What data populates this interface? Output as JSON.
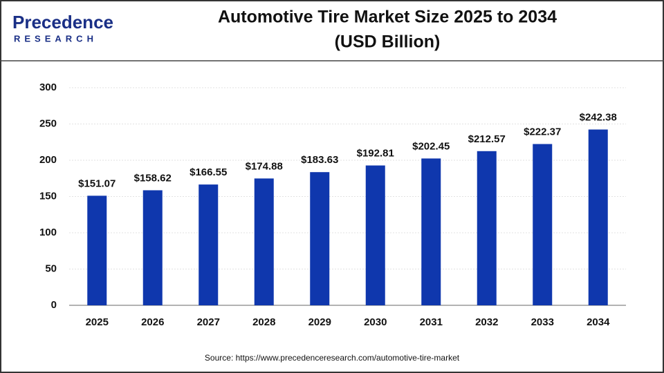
{
  "logo": {
    "name": "Precedence",
    "tagline": "RESEARCH"
  },
  "chart_data": {
    "type": "bar",
    "title": "Automotive Tire Market Size 2025 to 2034",
    "subtitle": "(USD Billion)",
    "categories": [
      "2025",
      "2026",
      "2027",
      "2028",
      "2029",
      "2030",
      "2031",
      "2032",
      "2033",
      "2034"
    ],
    "values": [
      151.07,
      158.62,
      166.55,
      174.88,
      183.63,
      192.81,
      202.45,
      212.57,
      222.37,
      242.38
    ],
    "value_labels": [
      "$151.07",
      "$158.62",
      "$166.55",
      "$174.88",
      "$183.63",
      "$192.81",
      "$202.45",
      "$212.57",
      "$222.37",
      "$242.38"
    ],
    "color": "#0f37ad",
    "ylim": [
      0,
      300
    ],
    "yticks": [
      0,
      50,
      100,
      150,
      200,
      250,
      300
    ],
    "grid": true,
    "source": "Source: https://www.precedenceresearch.com/automotive-tire-market"
  }
}
